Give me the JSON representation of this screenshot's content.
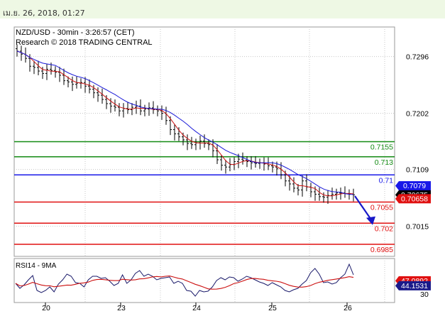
{
  "header": {
    "timestamp": "เม.ย. 26, 2018, 01:27"
  },
  "chart_data": {
    "type": "candlestick",
    "title": "NZD/USD - 30min - 3:26:57 (CET)",
    "subtitle": "Research © 2018 TRADING CENTRAL",
    "price_axis": {
      "ticks": [
        "0.7296",
        "0.7202",
        "0.7109",
        "0.7015"
      ]
    },
    "x_axis": {
      "ticks": [
        "20",
        "23",
        "24",
        "25",
        "26"
      ]
    },
    "levels": [
      {
        "value": 0.7155,
        "label": "0.7155",
        "color": "#138a13"
      },
      {
        "value": 0.713,
        "label": "0.713",
        "color": "#138a13"
      },
      {
        "value": 0.71,
        "label": "0.71",
        "color": "#1818e8"
      },
      {
        "value": 0.7055,
        "label": "0.7055",
        "color": "#e01010"
      },
      {
        "value": 0.702,
        "label": "0.702",
        "color": "#e01010"
      },
      {
        "value": 0.6985,
        "label": "0.6985",
        "color": "#e01010"
      }
    ],
    "price_badges": [
      {
        "value": 0.7079,
        "label": "0.7079",
        "color": "#1818e8"
      },
      {
        "value": 0.70675,
        "label": "0.70675",
        "color": "#000000"
      },
      {
        "value": 0.70658,
        "label": "0.70658",
        "color": "#e01010"
      }
    ],
    "close_series": [
      0.7305,
      0.73,
      0.7293,
      0.728,
      0.7278,
      0.7272,
      0.7268,
      0.7275,
      0.7273,
      0.727,
      0.7265,
      0.7256,
      0.7254,
      0.725,
      0.7252,
      0.7253,
      0.7247,
      0.7242,
      0.7236,
      0.7232,
      0.7225,
      0.7218,
      0.7214,
      0.7212,
      0.7206,
      0.721,
      0.7208,
      0.7212,
      0.7214,
      0.7206,
      0.7209,
      0.7211,
      0.7208,
      0.7206,
      0.7202,
      0.719,
      0.7175,
      0.7168,
      0.7163,
      0.7158,
      0.7152,
      0.715,
      0.7153,
      0.7156,
      0.7152,
      0.715,
      0.714,
      0.7125,
      0.7116,
      0.7113,
      0.7117,
      0.7122,
      0.7126,
      0.7124,
      0.7122,
      0.712,
      0.7119,
      0.712,
      0.7118,
      0.7115,
      0.7113,
      0.711,
      0.71,
      0.709,
      0.7085,
      0.7078,
      0.7075,
      0.709,
      0.708,
      0.7072,
      0.7068,
      0.7064,
      0.7063,
      0.7066,
      0.7068,
      0.707,
      0.707,
      0.7069,
      0.7068,
      0.7067
    ],
    "forecast_arrow": {
      "from": 0.7065,
      "to": 0.7017
    },
    "rsi": {
      "title": "RSI14 - 9MA",
      "ticks": [
        "30"
      ],
      "badges": [
        {
          "value": 47.0892,
          "label": "47.0892",
          "color": "#e01010"
        },
        {
          "value": 44.1531,
          "label": "44.1531",
          "color": "#1a1a8a"
        }
      ],
      "values": [
        45,
        38,
        43,
        50,
        56,
        35,
        32,
        35,
        40,
        33,
        44,
        50,
        58,
        55,
        46,
        45,
        40,
        50,
        55,
        55,
        52,
        53,
        48,
        42,
        45,
        57,
        45,
        50,
        59,
        63,
        55,
        58,
        55,
        50,
        52,
        53,
        54,
        45,
        48,
        45,
        35,
        34,
        27,
        35,
        33,
        34,
        40,
        49,
        53,
        50,
        54,
        53,
        48,
        51,
        55,
        53,
        50,
        47,
        45,
        42,
        46,
        43,
        40,
        35,
        33,
        36,
        38,
        44,
        49,
        60,
        66,
        58,
        46,
        47,
        44,
        46,
        53,
        58,
        72,
        57
      ]
    }
  }
}
